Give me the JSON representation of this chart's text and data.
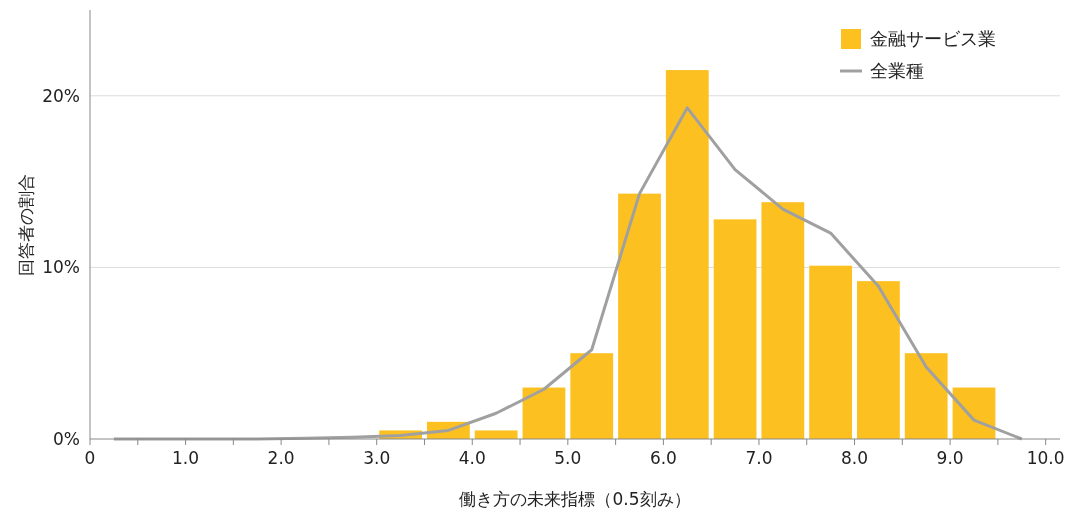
{
  "chart_data": {
    "type": "histogram",
    "xlabel": "働き方の未来指標（0.5刻み）",
    "ylabel": "回答者の割合",
    "bins": [
      0,
      0.5,
      1,
      1.5,
      2,
      2.5,
      3,
      3.5,
      4,
      4.5,
      5,
      5.5,
      6,
      6.5,
      7,
      7.5,
      8,
      8.5,
      9,
      9.5,
      10
    ],
    "series": [
      {
        "name": "金融サービス業",
        "color": "#fcc120",
        "values": [
          0,
          0,
          0,
          0,
          0,
          0,
          0.5,
          1.0,
          0.5,
          3.0,
          5.0,
          14.3,
          21.5,
          12.8,
          13.8,
          10.1,
          9.2,
          5.0,
          3.0,
          0
        ]
      },
      {
        "name": "全業種",
        "type": "line",
        "color": "#a0a0a0",
        "x": [
          0.25,
          0.75,
          1.25,
          1.75,
          2.25,
          2.75,
          3.25,
          3.75,
          4.25,
          4.75,
          5.25,
          5.75,
          6.25,
          6.75,
          7.25,
          7.75,
          8.25,
          8.75,
          9.25,
          9.75
        ],
        "values": [
          0,
          0,
          0,
          0,
          0.05,
          0.1,
          0.2,
          0.5,
          1.5,
          2.9,
          5.2,
          14.3,
          19.3,
          15.7,
          13.4,
          12.0,
          8.9,
          4.2,
          1.1,
          0
        ]
      }
    ],
    "xlim": [
      0,
      10.15
    ],
    "xticks": [
      0,
      {
        "value": 0.5,
        "label": null
      },
      {
        "value": 1,
        "label": "1.0"
      },
      {
        "value": 1.5,
        "label": null
      },
      {
        "value": 2,
        "label": "2.0"
      },
      {
        "value": 2.5,
        "label": null
      },
      {
        "value": 3,
        "label": "3.0"
      },
      {
        "value": 3.5,
        "label": null
      },
      {
        "value": 4,
        "label": "4.0"
      },
      {
        "value": 4.5,
        "label": null
      },
      {
        "value": 5,
        "label": "5.0"
      },
      {
        "value": 5.5,
        "label": null
      },
      {
        "value": 6,
        "label": "6.0"
      },
      {
        "value": 6.5,
        "label": null
      },
      {
        "value": 7,
        "label": "7.0"
      },
      {
        "value": 7.5,
        "label": null
      },
      {
        "value": 8,
        "label": "8.0"
      },
      {
        "value": 8.5,
        "label": null
      },
      {
        "value": 9,
        "label": "9.0"
      },
      {
        "value": 9.5,
        "label": null
      },
      {
        "value": 10,
        "label": "10.0"
      }
    ],
    "ylim": [
      0,
      25
    ],
    "yticks": [
      {
        "value": 0,
        "label": "0%"
      },
      {
        "value": 10,
        "label": "10%"
      },
      {
        "value": 20,
        "label": "20%"
      }
    ],
    "grid": "y",
    "legend": "top right",
    "marker": "none",
    "line_style": "solid"
  }
}
